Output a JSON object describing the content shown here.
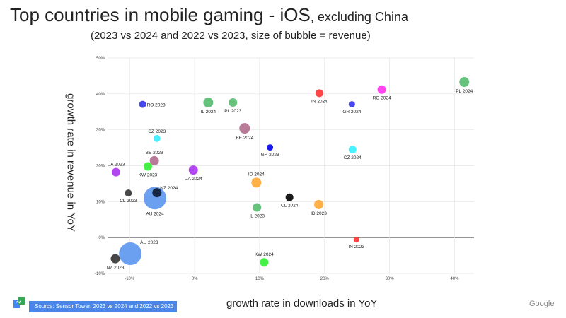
{
  "title": {
    "main": "Top countries in mobile gaming - iOS",
    "suffix": ", excluding China"
  },
  "subtitle": "(2023 vs 2024 and 2022 vs 2023, size of bubble = revenue)",
  "source": "Source: Sensor Tower, 2023 vs 2024 and 2022 vs 2023",
  "brand": "Google",
  "chart_data": {
    "type": "scatter",
    "title": "Top countries in mobile gaming - iOS, excluding China",
    "xlabel": "growth rate in downloads in YoY",
    "ylabel": "growth rate in revenue in YoY",
    "xlim": [
      -13.4,
      43
    ],
    "ylim": [
      -10,
      50
    ],
    "x_ticks": [
      -10,
      0,
      10,
      20,
      30,
      40
    ],
    "x_tick_labels": [
      "-10%",
      "0%",
      "10%",
      "20%",
      "30%",
      "40%"
    ],
    "y_ticks": [
      -10,
      0,
      10,
      20,
      30,
      40,
      50
    ],
    "y_tick_labels": [
      "-10%",
      "0%",
      "10%",
      "20%",
      "30%",
      "40%",
      "50%"
    ],
    "grid": true,
    "points": [
      {
        "label": "RO 2023",
        "x": -8.0,
        "y": 37.1,
        "size": 5,
        "color": "#3333ee",
        "label_pos": "right"
      },
      {
        "label": "IL 2024",
        "x": 2.1,
        "y": 37.6,
        "size": 7,
        "color": "#57bb6f",
        "label_pos": "below"
      },
      {
        "label": "PL 2023",
        "x": 5.9,
        "y": 37.6,
        "size": 6,
        "color": "#57bb6f",
        "label_pos": "below"
      },
      {
        "label": "CZ 2023",
        "x": -5.8,
        "y": 27.6,
        "size": 5,
        "color": "#33f0ff",
        "label_pos": "above"
      },
      {
        "label": "BE 2024",
        "x": 7.7,
        "y": 30.4,
        "size": 7.5,
        "color": "#b06e8e",
        "label_pos": "below"
      },
      {
        "label": "GR 2023",
        "x": 11.6,
        "y": 25.1,
        "size": 4.5,
        "color": "#0000ee",
        "label_pos": "below"
      },
      {
        "label": "BE 2023",
        "x": -6.2,
        "y": 21.4,
        "size": 6.5,
        "color": "#b06e8e",
        "label_pos": "above"
      },
      {
        "label": "KW 2023",
        "x": -7.2,
        "y": 19.8,
        "size": 6,
        "color": "#33ee33",
        "label_pos": "below"
      },
      {
        "label": "UA 2023",
        "x": -12.1,
        "y": 18.2,
        "size": 6,
        "color": "#aa33ee",
        "label_pos": "above"
      },
      {
        "label": "UA 2024",
        "x": -0.2,
        "y": 18.8,
        "size": 6.5,
        "color": "#aa33ee",
        "label_pos": "below"
      },
      {
        "label": "ID 2024",
        "x": 9.5,
        "y": 15.3,
        "size": 7,
        "color": "#ffa833",
        "label_pos": "above"
      },
      {
        "label": "CL 2023",
        "x": -10.2,
        "y": 12.4,
        "size": 5,
        "color": "#333333",
        "label_pos": "below"
      },
      {
        "label": "AU 2024",
        "x": -6.1,
        "y": 11.0,
        "size": 16,
        "color": "#5b95ee",
        "label_pos": "below"
      },
      {
        "label": "NZ 2024",
        "x": -5.8,
        "y": 12.5,
        "size": 6.5,
        "color": "#0d1a33",
        "label_pos": "upper-right"
      },
      {
        "label": "IL 2023",
        "x": 9.6,
        "y": 8.4,
        "size": 6,
        "color": "#57bb6f",
        "label_pos": "below"
      },
      {
        "label": "AU 2023",
        "x": -9.9,
        "y": -4.5,
        "size": 16,
        "color": "#5b95ee",
        "label_pos": "upper-right"
      },
      {
        "label": "NZ 2023",
        "x": -12.2,
        "y": -5.9,
        "size": 6.5,
        "color": "#333333",
        "label_pos": "below"
      },
      {
        "label": "KW 2024",
        "x": 10.7,
        "y": -6.9,
        "size": 6,
        "color": "#33ee33",
        "label_pos": "above"
      },
      {
        "label": "IN 2024",
        "x": 19.2,
        "y": 40.2,
        "size": 5.5,
        "color": "#ff3333",
        "label_pos": "below"
      },
      {
        "label": "GR 2024",
        "x": 24.2,
        "y": 37.1,
        "size": 4.5,
        "color": "#3333ee",
        "label_pos": "below"
      },
      {
        "label": "RO 2024",
        "x": 28.8,
        "y": 41.2,
        "size": 6,
        "color": "#ff33ee",
        "label_pos": "below"
      },
      {
        "label": "PL 2024",
        "x": 41.5,
        "y": 43.3,
        "size": 7,
        "color": "#57bb6f",
        "label_pos": "below"
      },
      {
        "label": "CZ 2024",
        "x": 24.3,
        "y": 24.5,
        "size": 5.5,
        "color": "#33f0ff",
        "label_pos": "below"
      },
      {
        "label": "CL 2024",
        "x": 14.6,
        "y": 11.2,
        "size": 5.5,
        "color": "#000000",
        "label_pos": "below"
      },
      {
        "label": "ID 2023",
        "x": 19.1,
        "y": 9.2,
        "size": 6.5,
        "color": "#ffa833",
        "label_pos": "below"
      },
      {
        "label": "IN 2023",
        "x": 24.9,
        "y": -0.6,
        "size": 4,
        "color": "#ff3333",
        "label_pos": "below"
      }
    ]
  }
}
